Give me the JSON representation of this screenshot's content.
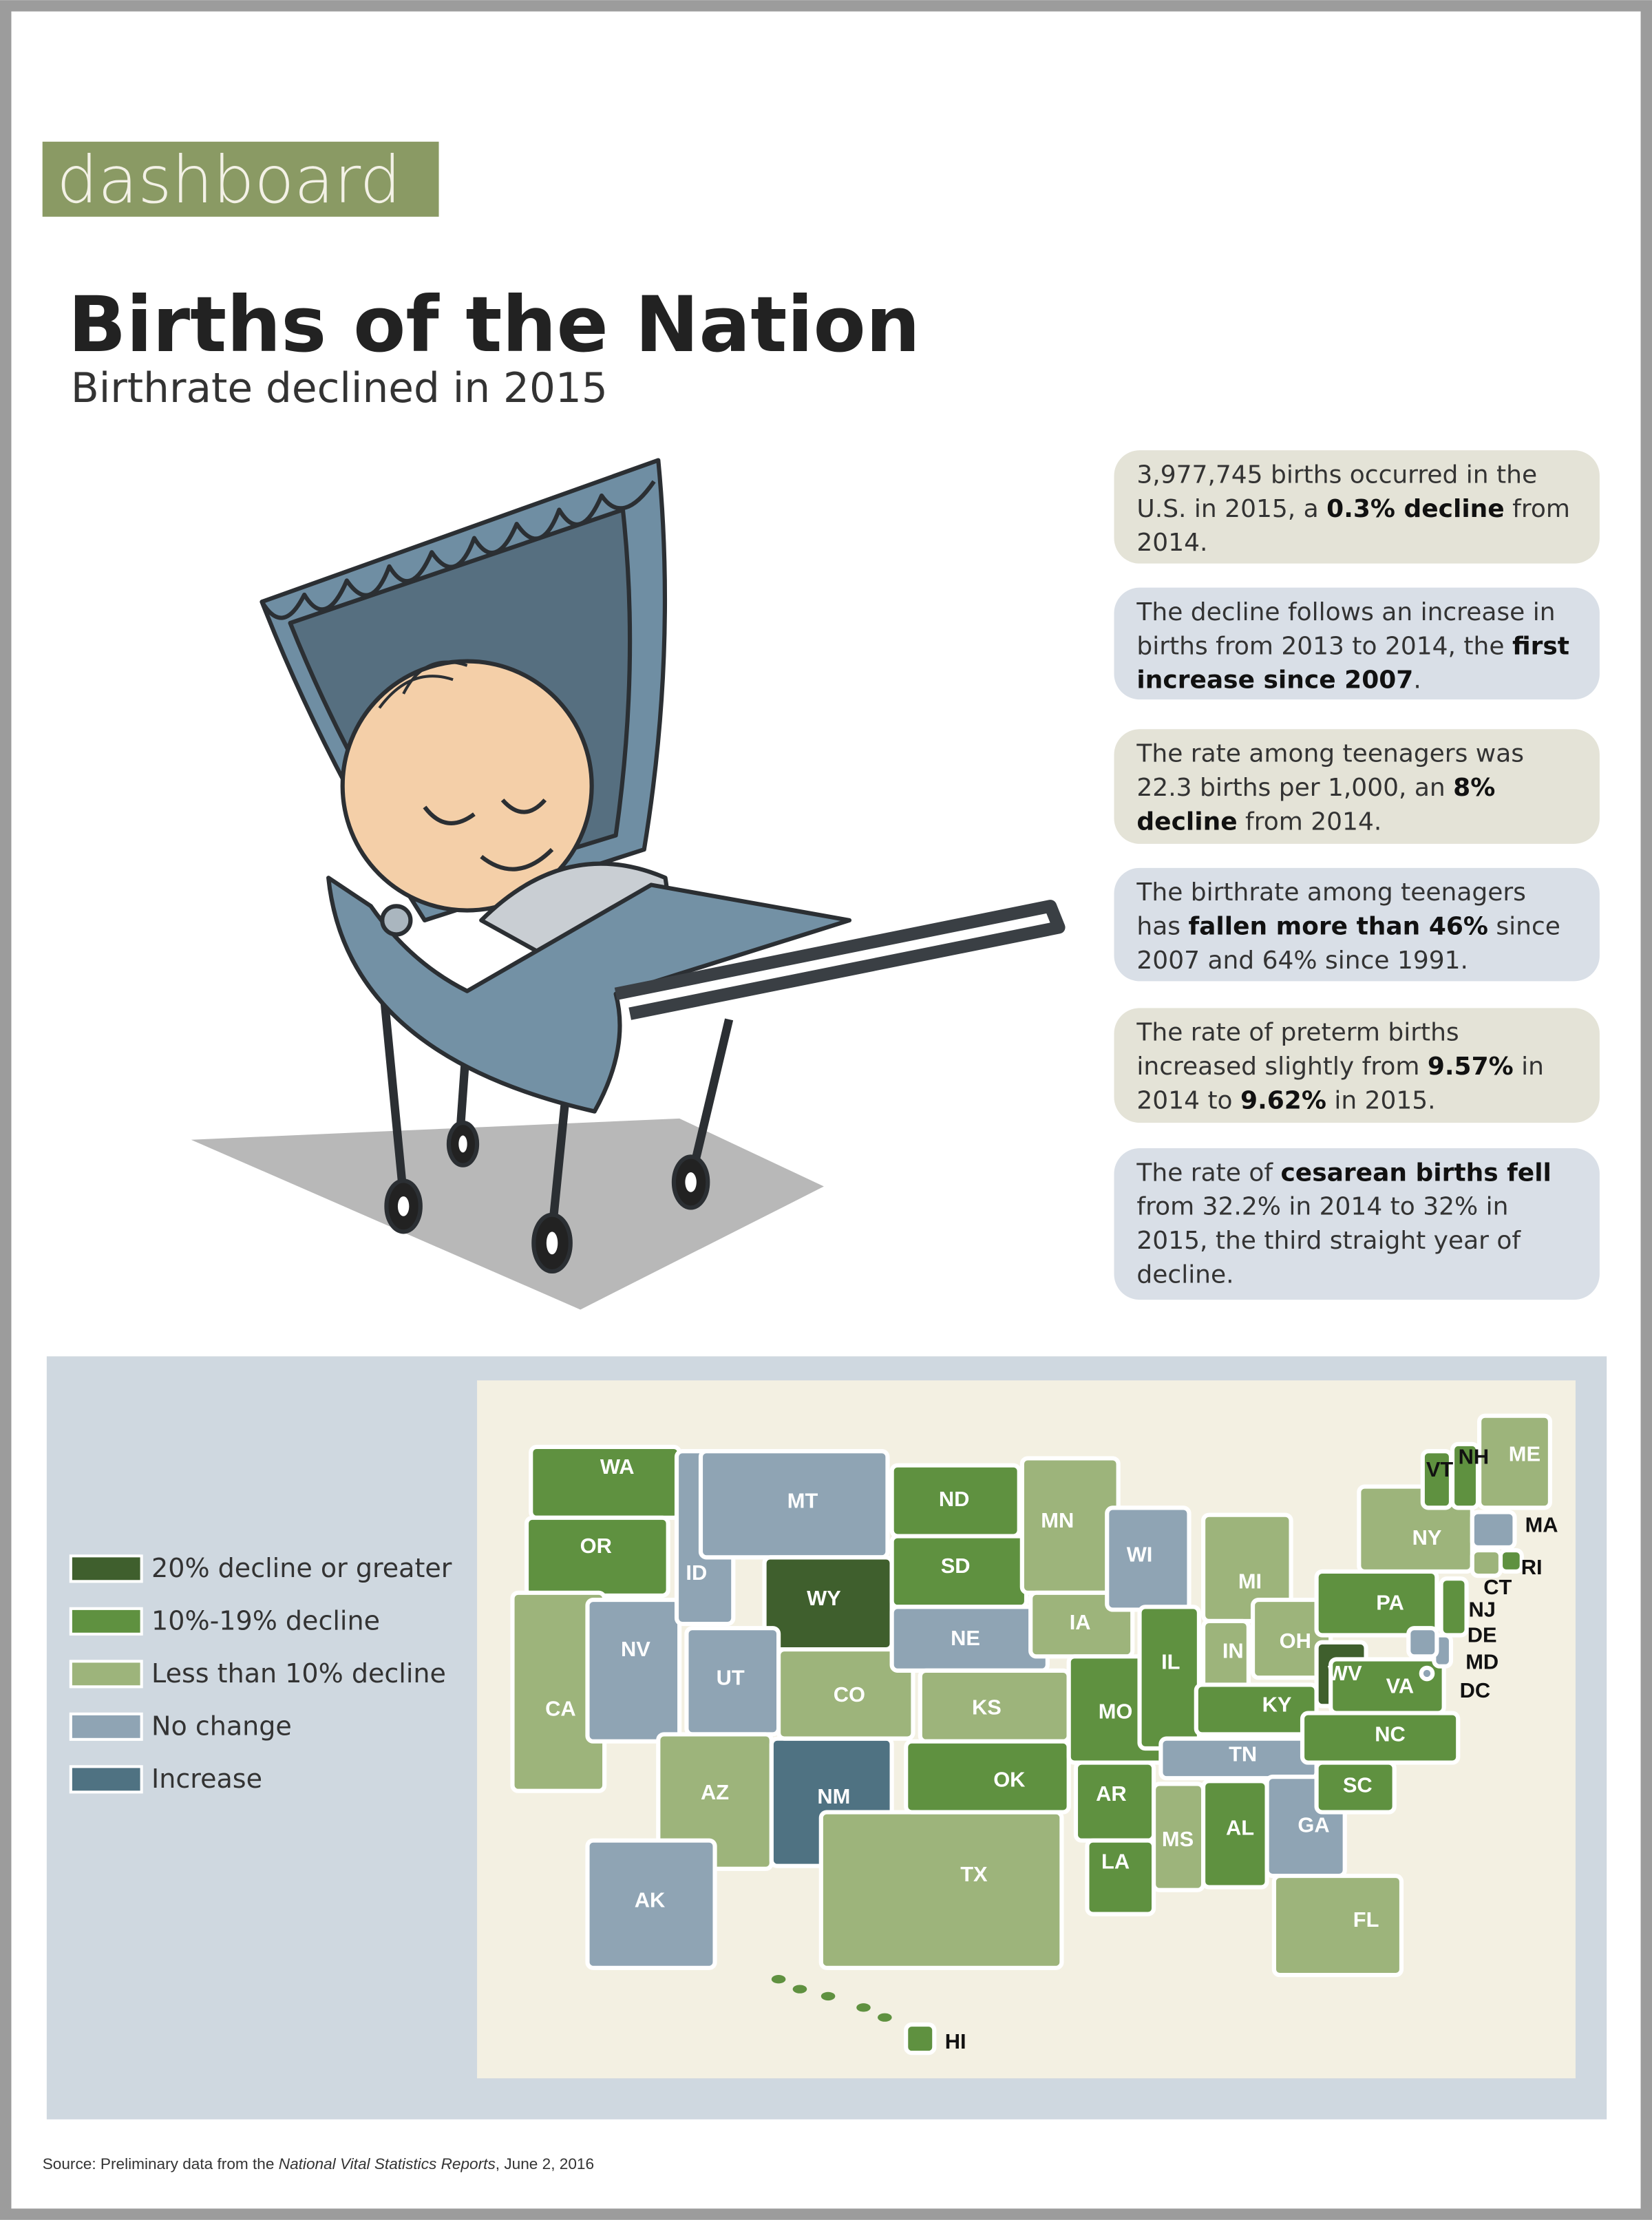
{
  "header": {
    "brand": "dashboard",
    "title": "Births of the Nation",
    "subtitle": "Birthrate declined in 2015"
  },
  "facts": [
    [
      {
        "text": "3,977,745 births occurred in the U.S. in 2015, a ",
        "bold": false
      },
      {
        "text": "0.3% decline",
        "bold": true
      },
      {
        "text": " from 2014.",
        "bold": false
      }
    ],
    [
      {
        "text": "The decline follows an increase in births from 2013 to 2014, the ",
        "bold": false
      },
      {
        "text": "first increase since 2007",
        "bold": true
      },
      {
        "text": ".",
        "bold": false
      }
    ],
    [
      {
        "text": "The rate among teenagers was 22.3 births per 1,000, an ",
        "bold": false
      },
      {
        "text": "8% decline",
        "bold": true
      },
      {
        "text": " from 2014.",
        "bold": false
      }
    ],
    [
      {
        "text": "The birthrate among teenagers has ",
        "bold": false
      },
      {
        "text": "fallen more than 46%",
        "bold": true
      },
      {
        "text": " since 2007 and 64% since 1991.",
        "bold": false
      }
    ],
    [
      {
        "text": "The rate of preterm births increased slightly from ",
        "bold": false
      },
      {
        "text": "9.57%",
        "bold": true
      },
      {
        "text": " in 2014 to ",
        "bold": false
      },
      {
        "text": "9.62%",
        "bold": true
      },
      {
        "text": " in 2015.",
        "bold": false
      }
    ],
    [
      {
        "text": "The rate of ",
        "bold": false
      },
      {
        "text": "cesarean births fell",
        "bold": true
      },
      {
        "text": " from 32.2% in 2014 to 32% in 2015, the third straight year of decline.",
        "bold": false
      }
    ]
  ],
  "map": {
    "legend": [
      {
        "label": "20% decline or greater",
        "color": "#3f5f2d"
      },
      {
        "label": "10%-19% decline",
        "color": "#5f9140"
      },
      {
        "label": "Less than 10% decline",
        "color": "#9db47b"
      },
      {
        "label": "No change",
        "color": "#8fa4b4"
      },
      {
        "label": "Increase",
        "color": "#4f7282"
      }
    ],
    "states": [
      {
        "label": "WA",
        "color": "#5f9140"
      },
      {
        "label": "OR",
        "color": "#5f9140"
      },
      {
        "label": "CA",
        "color": "#9db47b"
      },
      {
        "label": "NV",
        "color": "#8fa4b4"
      },
      {
        "label": "ID",
        "color": "#8fa4b4"
      },
      {
        "label": "MT",
        "color": "#8fa4b4"
      },
      {
        "label": "WY",
        "color": "#3f5f2d"
      },
      {
        "label": "UT",
        "color": "#8fa4b4"
      },
      {
        "label": "AZ",
        "color": "#9db47b"
      },
      {
        "label": "NM",
        "color": "#4f7282"
      },
      {
        "label": "CO",
        "color": "#9db47b"
      },
      {
        "label": "ND",
        "color": "#5f9140"
      },
      {
        "label": "SD",
        "color": "#5f9140"
      },
      {
        "label": "NE",
        "color": "#8fa4b4"
      },
      {
        "label": "KS",
        "color": "#9db47b"
      },
      {
        "label": "TX",
        "color": "#9db47b"
      },
      {
        "label": "OK",
        "color": "#5f9140"
      },
      {
        "label": "MN",
        "color": "#9db47b"
      },
      {
        "label": "IA",
        "color": "#9db47b"
      },
      {
        "label": "MO",
        "color": "#5f9140"
      },
      {
        "label": "AR",
        "color": "#5f9140"
      },
      {
        "label": "LA",
        "color": "#5f9140"
      },
      {
        "label": "WI",
        "color": "#8fa4b4"
      },
      {
        "label": "IL",
        "color": "#5f9140"
      },
      {
        "label": "MS",
        "color": "#9db47b"
      },
      {
        "label": "MI",
        "color": "#9db47b"
      },
      {
        "label": "IN",
        "color": "#9db47b"
      },
      {
        "label": "KY",
        "color": "#5f9140"
      },
      {
        "label": "TN",
        "color": "#8fa4b4"
      },
      {
        "label": "AL",
        "color": "#5f9140"
      },
      {
        "label": "GA",
        "color": "#8fa4b4"
      },
      {
        "label": "FL",
        "color": "#9db47b"
      },
      {
        "label": "OH",
        "color": "#9db47b"
      },
      {
        "label": "WV",
        "color": "#3f5f2d"
      },
      {
        "label": "VA",
        "color": "#5f9140"
      },
      {
        "label": "NC",
        "color": "#5f9140"
      },
      {
        "label": "SC",
        "color": "#5f9140"
      },
      {
        "label": "PA",
        "color": "#5f9140"
      },
      {
        "label": "NY",
        "color": "#9db47b"
      },
      {
        "label": "VT",
        "color": "#5f9140"
      },
      {
        "label": "NH",
        "color": "#5f9140"
      },
      {
        "label": "ME",
        "color": "#9db47b"
      },
      {
        "label": "MA",
        "color": "#8fa4b4"
      },
      {
        "label": "RI",
        "color": "#5f9140"
      },
      {
        "label": "CT",
        "color": "#9db47b"
      },
      {
        "label": "NJ",
        "color": "#5f9140"
      },
      {
        "label": "DE",
        "color": "#8fa4b4"
      },
      {
        "label": "MD",
        "color": "#8fa4b4"
      },
      {
        "label": "DC",
        "color": "#8fa4b4"
      },
      {
        "label": "AK",
        "color": "#8fa4b4"
      },
      {
        "label": "HI",
        "color": "#5f9140"
      }
    ]
  },
  "source": [
    {
      "text": "Source: Preliminary data from the ",
      "italic": false
    },
    {
      "text": "National Vital Statistics Reports",
      "italic": true
    },
    {
      "text": ", June 2, 2016",
      "italic": false
    }
  ]
}
